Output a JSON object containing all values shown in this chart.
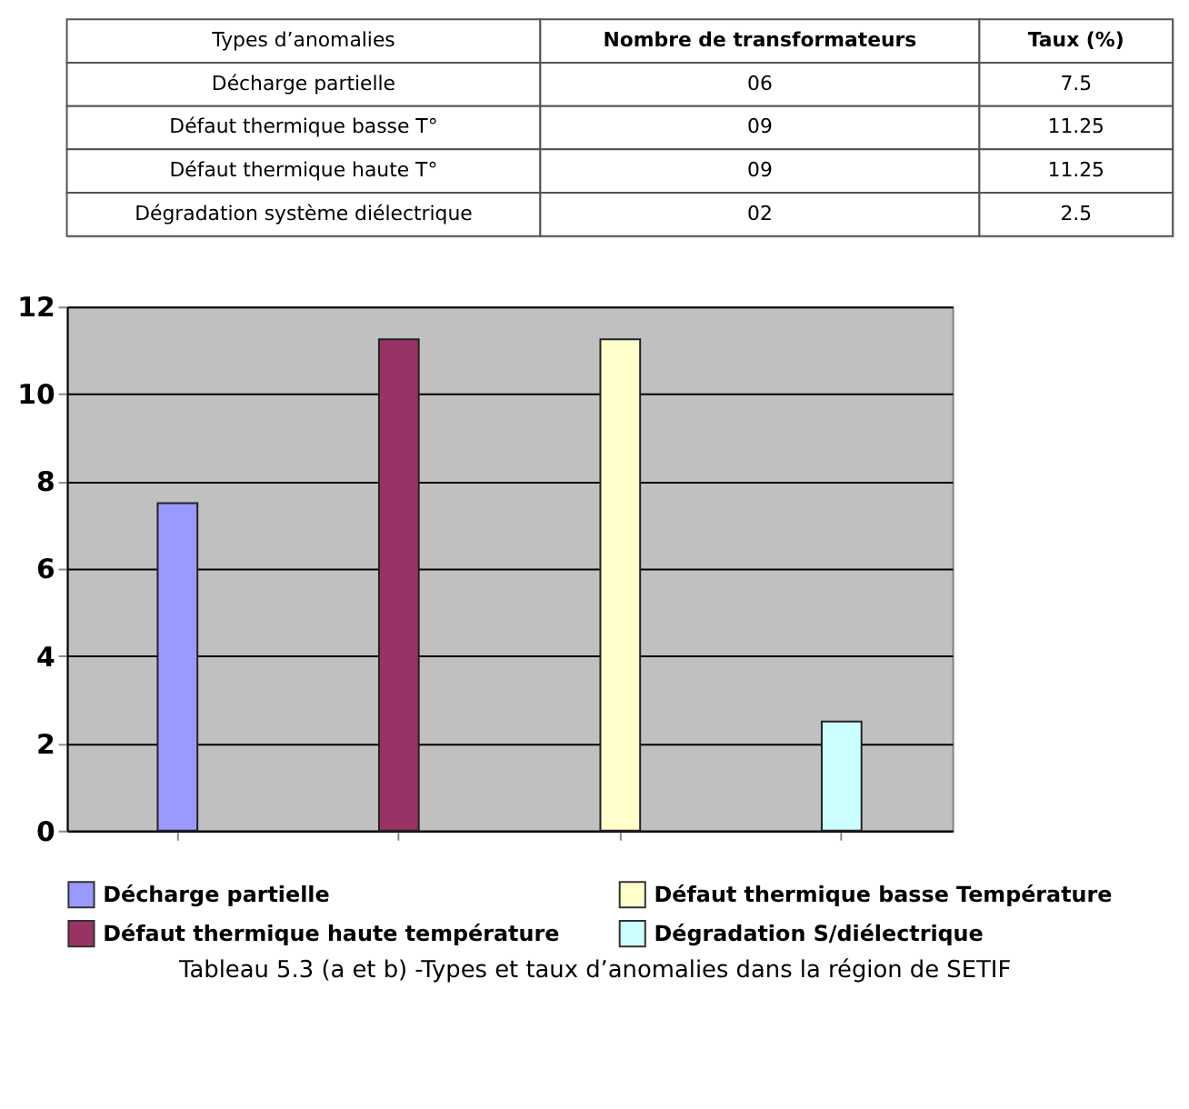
{
  "chart_data": {
    "type": "bar",
    "title": "Tableau 5.3 (a et b) -Types et taux d’anomalies dans la région de SETIF",
    "categories": [
      null,
      null,
      null,
      null
    ],
    "series": [
      {
        "name": "Décharge partielle",
        "color": "#9999ff",
        "values": [
          7.5,
          null,
          null,
          null
        ]
      },
      {
        "name": "Défaut thermique basse Température",
        "color": "#ffffcc",
        "values": [
          null,
          null,
          11.25,
          null
        ]
      },
      {
        "name": "Défaut thermique haute température",
        "color": "#993366",
        "values": [
          null,
          11.25,
          null,
          null
        ]
      },
      {
        "name": "Dégradation S/diélectrique",
        "color": "#ccffff",
        "values": [
          null,
          null,
          null,
          2.5
        ]
      }
    ],
    "ylim": [
      0,
      12
    ],
    "yticks": [
      0,
      2,
      4,
      6,
      8,
      10,
      12
    ],
    "grid": "y",
    "legend": "bottom",
    "annotations": [
      "Types d’anomalies",
      "Nombre de transformateurs",
      "Taux (%)",
      "Décharge partielle",
      "06",
      "7.5",
      "Défaut thermique basse T°",
      "09",
      "11.25",
      "Défaut thermique haute T°",
      "09",
      "11.25",
      "Dégradation système diélectrique",
      "02",
      "2.5"
    ]
  }
}
